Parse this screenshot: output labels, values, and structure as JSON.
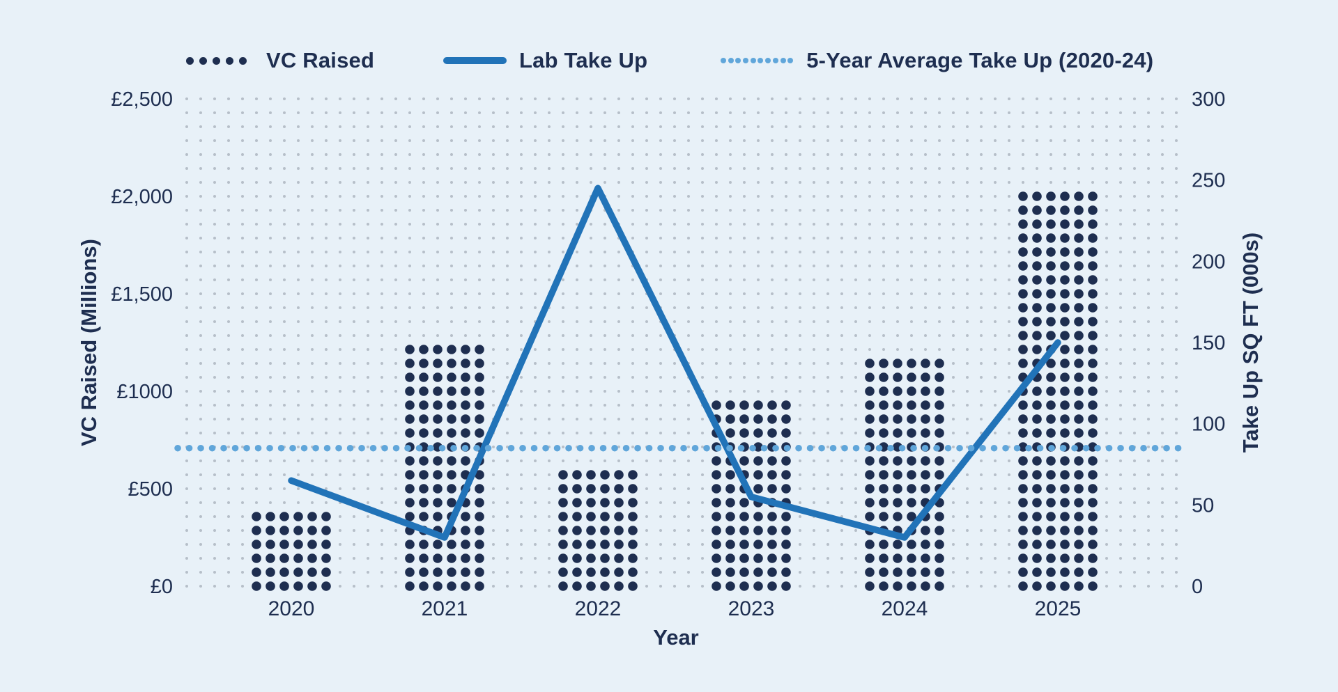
{
  "legend": {
    "items": [
      {
        "label": "VC Raised",
        "marker": "dot-row"
      },
      {
        "label": "Lab Take Up",
        "marker": "solid-line"
      },
      {
        "label": "5-Year Average Take Up (2020-24)",
        "marker": "dotted-line"
      }
    ]
  },
  "axes": {
    "left": {
      "title": "VC Raised (Millions)",
      "tick_labels": [
        "£0",
        "£500",
        "£1000",
        "£1,500",
        "£2,000",
        "£2,500"
      ],
      "tick_values": [
        0,
        500,
        1000,
        1500,
        2000,
        2500
      ]
    },
    "right": {
      "title": "Take Up SQ FT (000s)",
      "tick_labels": [
        "0",
        "50",
        "100",
        "150",
        "200",
        "250",
        "300"
      ],
      "tick_values": [
        0,
        50,
        100,
        150,
        200,
        250,
        300
      ]
    },
    "x": {
      "title": "Year",
      "categories": [
        "2020",
        "2021",
        "2022",
        "2023",
        "2024",
        "2025"
      ]
    }
  },
  "chart_data": {
    "type": "combo",
    "title": "",
    "categories": [
      "2020",
      "2021",
      "2022",
      "2023",
      "2024",
      "2025"
    ],
    "xlabel": "Year",
    "ylabel_left": "VC Raised (Millions)",
    "ylabel_right": "Take Up SQ FT (000s)",
    "ylim_left": [
      0,
      2500
    ],
    "ylim_right": [
      0,
      300
    ],
    "grid": "dot-matrix",
    "legend_position": "top",
    "series": [
      {
        "name": "VC Raised",
        "type": "dot-matrix-bar",
        "axis": "left",
        "unit": "£ millions",
        "values": [
          360,
          1220,
          575,
          935,
          1150,
          2000
        ]
      },
      {
        "name": "Lab Take Up",
        "type": "line",
        "axis": "right",
        "unit": "000s sq ft",
        "values": [
          65,
          30,
          245,
          55,
          30,
          150
        ]
      },
      {
        "name": "5-Year Average Take Up (2020-24)",
        "type": "horizontal-dotted-line",
        "axis": "right",
        "value": 85
      }
    ]
  },
  "colors": {
    "background": "#e8f1f8",
    "navy": "#1e2e50",
    "line_blue": "#2173b8",
    "light_blue": "#60a6da",
    "grid_dot": "#b6bfc9"
  }
}
